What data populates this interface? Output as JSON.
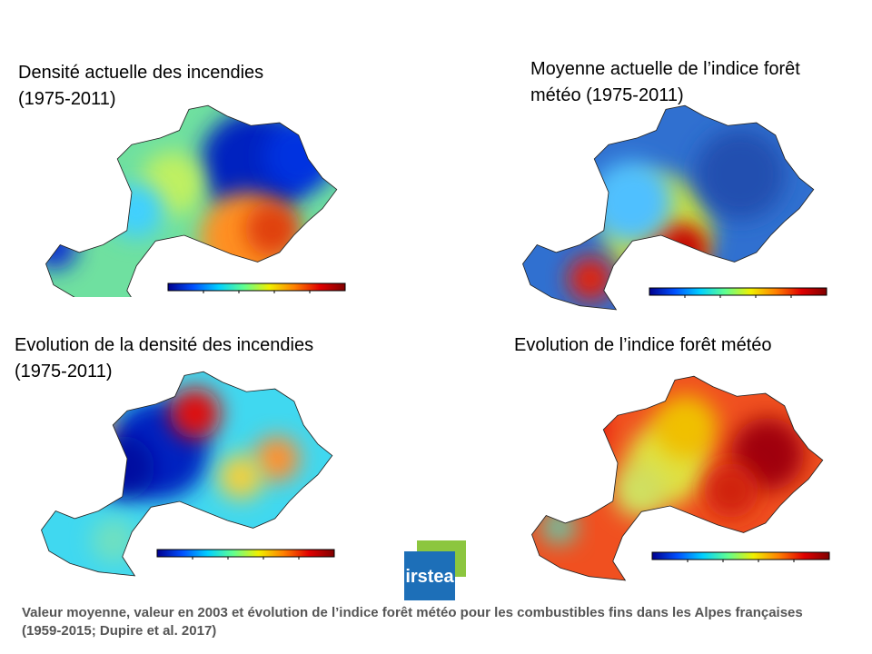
{
  "panels": [
    {
      "title": "Densité actuelle des incendies (1975-2011)"
    },
    {
      "title": "Moyenne actuelle de l’indice forêt météo (1975-2011)"
    },
    {
      "title": "Evolution de la densité des incendies (1975-2011)"
    },
    {
      "title": "Evolution de l’indice forêt météo"
    }
  ],
  "logo": "irstea",
  "caption": "Valeur moyenne, valeur en 2003 et évolution de l’indice forêt météo pour les combustibles fins dans les Alpes françaises (1959-2015; Dupire et al. 2017)"
}
